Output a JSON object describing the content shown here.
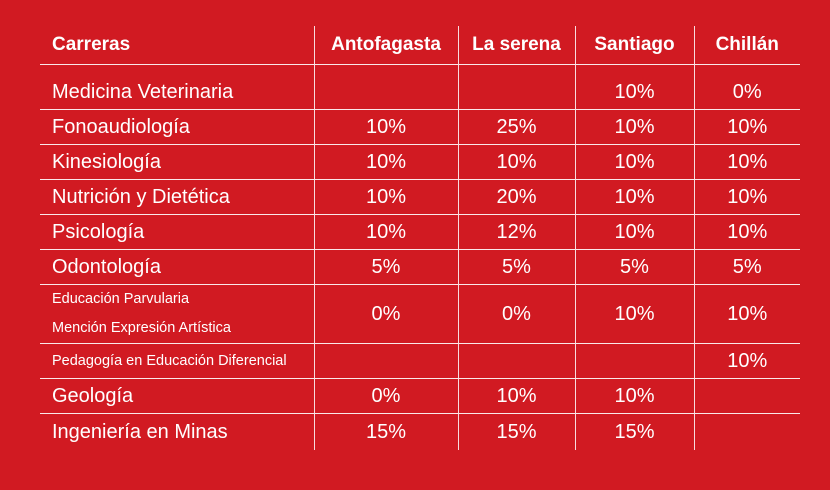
{
  "headers": [
    "Carreras",
    "Antofagasta",
    "La serena",
    "Santiago",
    "Chillán"
  ],
  "rows": [
    {
      "career": "Medicina Veterinaria",
      "antofagasta": "",
      "la_serena": "",
      "santiago": "10%",
      "chillan": "0%"
    },
    {
      "career": "Fonoaudiología",
      "antofagasta": "10%",
      "la_serena": "25%",
      "santiago": "10%",
      "chillan": "10%"
    },
    {
      "career": "Kinesiología",
      "antofagasta": "10%",
      "la_serena": "10%",
      "santiago": "10%",
      "chillan": "10%"
    },
    {
      "career": "Nutrición y Dietética",
      "antofagasta": "10%",
      "la_serena": "20%",
      "santiago": "10%",
      "chillan": "10%"
    },
    {
      "career": "Psicología",
      "antofagasta": "10%",
      "la_serena": "12%",
      "santiago": "10%",
      "chillan": "10%"
    },
    {
      "career": "Odontología",
      "antofagasta": "5%",
      "la_serena": "5%",
      "santiago": "5%",
      "chillan": "5%"
    },
    {
      "career_line1": "Educación Parvularia",
      "career_line2": "Mención Expresión Artística",
      "antofagasta": "0%",
      "la_serena": "0%",
      "santiago": "10%",
      "chillan": "10%"
    },
    {
      "career": "Pedagogía en Educación Diferencial",
      "antofagasta": "",
      "la_serena": "",
      "santiago": "",
      "chillan": "10%"
    },
    {
      "career": "Geología",
      "antofagasta": "0%",
      "la_serena": "10%",
      "santiago": "10%",
      "chillan": ""
    },
    {
      "career": "Ingeniería en Minas",
      "antofagasta": "15%",
      "la_serena": "15%",
      "santiago": "15%",
      "chillan": ""
    }
  ]
}
